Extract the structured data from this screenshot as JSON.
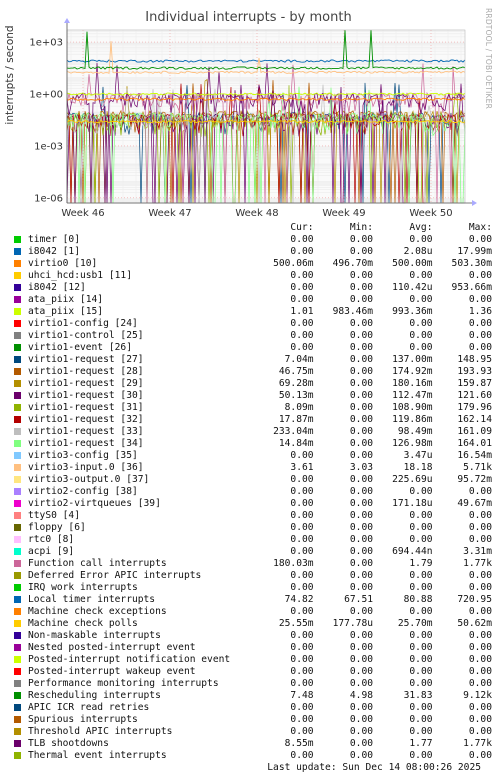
{
  "title": "Individual interrupts - by month",
  "watermark": "RRDTOOL / TOBI OETIKER",
  "last_update": "Last update: Sun Dec 14 08:00:26 2025",
  "chart_data": {
    "type": "line",
    "title": "Individual interrupts - by month",
    "ylabel": "interrupts / second",
    "yscale": "log",
    "ylim": [
      5e-07,
      5000.0
    ],
    "y_ticks": [
      "1e-06",
      "1e-03",
      "1e+00",
      "1e+03"
    ],
    "x_ticks": [
      "Week 46",
      "Week 47",
      "Week 48",
      "Week 49",
      "Week 50"
    ],
    "grid": true,
    "legend_columns": [
      "Cur:",
      "Min:",
      "Avg:",
      "Max:"
    ],
    "series": [
      {
        "name": "timer [0]",
        "color": "#00cc00",
        "cur": "0.00",
        "min": "0.00",
        "avg": "0.00",
        "max": "0.00"
      },
      {
        "name": "i8042 [1]",
        "color": "#0066b3",
        "cur": "0.00",
        "min": "0.00",
        "avg": "2.08u",
        "max": "17.99m"
      },
      {
        "name": "virtio0 [10]",
        "color": "#ff8000",
        "cur": "500.06m",
        "min": "496.70m",
        "avg": "500.00m",
        "max": "503.30m"
      },
      {
        "name": "uhci_hcd:usb1 [11]",
        "color": "#ffcc00",
        "cur": "0.00",
        "min": "0.00",
        "avg": "0.00",
        "max": "0.00"
      },
      {
        "name": "i8042 [12]",
        "color": "#330099",
        "cur": "0.00",
        "min": "0.00",
        "avg": "110.42u",
        "max": "953.66m"
      },
      {
        "name": "ata_piix [14]",
        "color": "#990099",
        "cur": "0.00",
        "min": "0.00",
        "avg": "0.00",
        "max": "0.00"
      },
      {
        "name": "ata_piix [15]",
        "color": "#ccff00",
        "cur": "1.01",
        "min": "983.46m",
        "avg": "993.36m",
        "max": "1.36"
      },
      {
        "name": "virtio1-config [24]",
        "color": "#ff0000",
        "cur": "0.00",
        "min": "0.00",
        "avg": "0.00",
        "max": "0.00"
      },
      {
        "name": "virtio1-control [25]",
        "color": "#808080",
        "cur": "0.00",
        "min": "0.00",
        "avg": "0.00",
        "max": "0.00"
      },
      {
        "name": "virtio1-event [26]",
        "color": "#008f00",
        "cur": "0.00",
        "min": "0.00",
        "avg": "0.00",
        "max": "0.00"
      },
      {
        "name": "virtio1-request [27]",
        "color": "#00487d",
        "cur": "7.04m",
        "min": "0.00",
        "avg": "137.00m",
        "max": "148.95"
      },
      {
        "name": "virtio1-request [28]",
        "color": "#b35a00",
        "cur": "46.75m",
        "min": "0.00",
        "avg": "174.92m",
        "max": "193.93"
      },
      {
        "name": "virtio1-request [29]",
        "color": "#b38f00",
        "cur": "69.28m",
        "min": "0.00",
        "avg": "180.16m",
        "max": "159.87"
      },
      {
        "name": "virtio1-request [30]",
        "color": "#6b006b",
        "cur": "50.13m",
        "min": "0.00",
        "avg": "112.47m",
        "max": "121.60"
      },
      {
        "name": "virtio1-request [31]",
        "color": "#8fb300",
        "cur": "8.09m",
        "min": "0.00",
        "avg": "108.90m",
        "max": "179.96"
      },
      {
        "name": "virtio1-request [32]",
        "color": "#b30000",
        "cur": "17.87m",
        "min": "0.00",
        "avg": "119.86m",
        "max": "162.14"
      },
      {
        "name": "virtio1-request [33]",
        "color": "#bebebe",
        "cur": "233.04m",
        "min": "0.00",
        "avg": "98.49m",
        "max": "161.09"
      },
      {
        "name": "virtio1-request [34]",
        "color": "#80ff80",
        "cur": "14.84m",
        "min": "0.00",
        "avg": "126.98m",
        "max": "164.01"
      },
      {
        "name": "virtio3-config [35]",
        "color": "#80c9ff",
        "cur": "0.00",
        "min": "0.00",
        "avg": "3.47u",
        "max": "16.54m"
      },
      {
        "name": "virtio3-input.0 [36]",
        "color": "#ffc080",
        "cur": "3.61",
        "min": "3.03",
        "avg": "18.18",
        "max": "5.71k"
      },
      {
        "name": "virtio3-output.0 [37]",
        "color": "#ffe680",
        "cur": "0.00",
        "min": "0.00",
        "avg": "225.69u",
        "max": "95.72m"
      },
      {
        "name": "virtio2-config [38]",
        "color": "#aa80ff",
        "cur": "0.00",
        "min": "0.00",
        "avg": "0.00",
        "max": "0.00"
      },
      {
        "name": "virtio2-virtqueues [39]",
        "color": "#ee00cc",
        "cur": "0.00",
        "min": "0.00",
        "avg": "171.18u",
        "max": "49.67m"
      },
      {
        "name": "ttyS0 [4]",
        "color": "#ff8080",
        "cur": "0.00",
        "min": "0.00",
        "avg": "0.00",
        "max": "0.00"
      },
      {
        "name": "floppy [6]",
        "color": "#666600",
        "cur": "0.00",
        "min": "0.00",
        "avg": "0.00",
        "max": "0.00"
      },
      {
        "name": "rtc0 [8]",
        "color": "#ffbfff",
        "cur": "0.00",
        "min": "0.00",
        "avg": "0.00",
        "max": "0.00"
      },
      {
        "name": "acpi [9]",
        "color": "#00ffcc",
        "cur": "0.00",
        "min": "0.00",
        "avg": "694.44n",
        "max": "3.31m"
      },
      {
        "name": "Function call interrupts",
        "color": "#cc6699",
        "cur": "180.03m",
        "min": "0.00",
        "avg": "1.79",
        "max": "1.77k"
      },
      {
        "name": "Deferred Error APIC interrupts",
        "color": "#999900",
        "cur": "0.00",
        "min": "0.00",
        "avg": "0.00",
        "max": "0.00"
      },
      {
        "name": "IRQ work interrupts",
        "color": "#00cc00",
        "cur": "0.00",
        "min": "0.00",
        "avg": "0.00",
        "max": "0.00"
      },
      {
        "name": "Local timer interrupts",
        "color": "#0066b3",
        "cur": "74.82",
        "min": "67.51",
        "avg": "80.88",
        "max": "720.95"
      },
      {
        "name": "Machine check exceptions",
        "color": "#ff8000",
        "cur": "0.00",
        "min": "0.00",
        "avg": "0.00",
        "max": "0.00"
      },
      {
        "name": "Machine check polls",
        "color": "#ffcc00",
        "cur": "25.55m",
        "min": "177.78u",
        "avg": "25.70m",
        "max": "50.62m"
      },
      {
        "name": "Non-maskable interrupts",
        "color": "#330099",
        "cur": "0.00",
        "min": "0.00",
        "avg": "0.00",
        "max": "0.00"
      },
      {
        "name": "Nested posted-interrupt event",
        "color": "#990099",
        "cur": "0.00",
        "min": "0.00",
        "avg": "0.00",
        "max": "0.00"
      },
      {
        "name": "Posted-interrupt notification event",
        "color": "#ccff00",
        "cur": "0.00",
        "min": "0.00",
        "avg": "0.00",
        "max": "0.00"
      },
      {
        "name": "Posted-interrupt wakeup event",
        "color": "#ff0000",
        "cur": "0.00",
        "min": "0.00",
        "avg": "0.00",
        "max": "0.00"
      },
      {
        "name": "Performance monitoring interrupts",
        "color": "#808080",
        "cur": "0.00",
        "min": "0.00",
        "avg": "0.00",
        "max": "0.00"
      },
      {
        "name": "Rescheduling interrupts",
        "color": "#008f00",
        "cur": "7.48",
        "min": "4.98",
        "avg": "31.83",
        "max": "9.12k"
      },
      {
        "name": "APIC ICR read retries",
        "color": "#00487d",
        "cur": "0.00",
        "min": "0.00",
        "avg": "0.00",
        "max": "0.00"
      },
      {
        "name": "Spurious interrupts",
        "color": "#b35a00",
        "cur": "0.00",
        "min": "0.00",
        "avg": "0.00",
        "max": "0.00"
      },
      {
        "name": "Threshold APIC interrupts",
        "color": "#b38f00",
        "cur": "0.00",
        "min": "0.00",
        "avg": "0.00",
        "max": "0.00"
      },
      {
        "name": "TLB shootdowns",
        "color": "#6b006b",
        "cur": "8.55m",
        "min": "0.00",
        "avg": "1.77",
        "max": "1.77k"
      },
      {
        "name": "Thermal event interrupts",
        "color": "#8fb300",
        "cur": "0.00",
        "min": "0.00",
        "avg": "0.00",
        "max": "0.00"
      }
    ]
  }
}
